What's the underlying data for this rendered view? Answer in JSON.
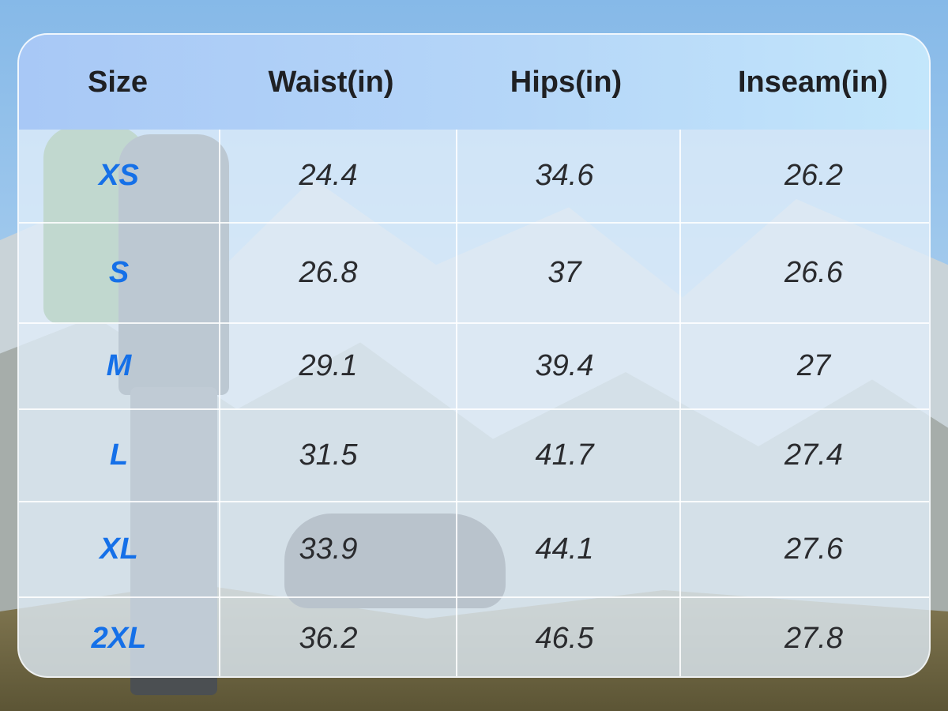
{
  "table": {
    "headers": [
      "Size",
      "Waist(in)",
      "Hips(in)",
      "Inseam(in)"
    ],
    "rows": [
      {
        "size": "XS",
        "waist": "24.4",
        "hips": "34.6",
        "inseam": "26.2"
      },
      {
        "size": "S",
        "waist": "26.8",
        "hips": "37",
        "inseam": "26.6"
      },
      {
        "size": "M",
        "waist": "29.1",
        "hips": "39.4",
        "inseam": "27"
      },
      {
        "size": "L",
        "waist": "31.5",
        "hips": "41.7",
        "inseam": "27.4"
      },
      {
        "size": "XL",
        "waist": "33.9",
        "hips": "44.1",
        "inseam": "27.6"
      },
      {
        "size": "2XL",
        "waist": "36.2",
        "hips": "46.5",
        "inseam": "27.8"
      }
    ]
  },
  "colors": {
    "size_label": "#1570e8",
    "header_gradient_start": "#a8c8f6",
    "header_gradient_end": "#c3e6fb",
    "value_text": "#2a2b2e"
  }
}
